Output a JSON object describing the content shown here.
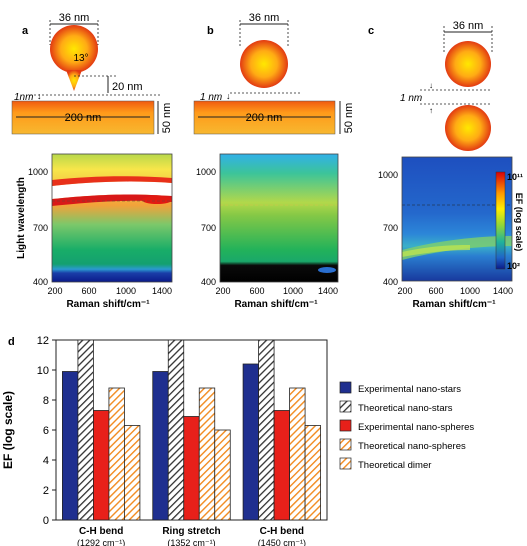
{
  "panels": {
    "a": {
      "label": "a",
      "dims": {
        "diameter": "36 nm",
        "angle": "13°",
        "tip": "20 nm",
        "gap": "1nm",
        "length": "200 nm",
        "thickness": "50 nm"
      },
      "ticks_y": [
        "1000",
        "700",
        "400"
      ],
      "ticks_x": [
        "200",
        "600",
        "1000",
        "1400"
      ],
      "ylabel": "Light wavelength",
      "xlabel": "Raman shift/cm⁻¹"
    },
    "b": {
      "label": "b",
      "dims": {
        "diameter": "36 nm",
        "gap": "1 nm",
        "length": "200 nm",
        "thickness": "50 nm"
      },
      "ticks_y": [
        "1000",
        "700",
        "400"
      ],
      "ticks_x": [
        "200",
        "600",
        "1000",
        "1400"
      ],
      "xlabel": "Raman shift/cm⁻¹"
    },
    "c": {
      "label": "c",
      "dims": {
        "diameter": "36 nm",
        "gap": "1 nm"
      },
      "ticks_y": [
        "1000",
        "700",
        "400"
      ],
      "ticks_x": [
        "200",
        "600",
        "1000",
        "1400"
      ],
      "xlabel": "Raman shift/cm⁻¹",
      "colorbar": {
        "top": "10¹¹",
        "bottom": "10²",
        "label": "EF (log scale)"
      }
    }
  },
  "bar_panel_label": "d",
  "chart_data": {
    "type": "bar",
    "categories": [
      "C-H bend (1292 cm⁻¹)",
      "Ring stretch (1352 cm⁻¹)",
      "C-H bend (1450 cm⁻¹)"
    ],
    "category_lines": [
      [
        "C-H bend",
        "(1292 cm⁻¹)"
      ],
      [
        "Ring stretch",
        "(1352 cm⁻¹)"
      ],
      [
        "C-H bend",
        "(1450 cm⁻¹)"
      ]
    ],
    "series": [
      {
        "name": "Experimental nano-stars",
        "values": [
          9.9,
          9.9,
          10.4
        ],
        "color": "#1f2f8f",
        "hatch": false
      },
      {
        "name": "Theoretical nano-stars",
        "values": [
          12,
          12,
          12
        ],
        "color": "#303030",
        "hatch": true
      },
      {
        "name": "Experimental nano-spheres",
        "values": [
          7.3,
          6.9,
          7.3
        ],
        "color": "#e8201a",
        "hatch": false
      },
      {
        "name": "Theoretical nano-spheres",
        "values": [
          8.8,
          8.8,
          8.8
        ],
        "color": "#f28a1e",
        "hatch": true
      },
      {
        "name": "Theoretical dimer",
        "values": [
          6.3,
          6.0,
          6.3
        ],
        "color": "#f29a2e",
        "hatch": true
      }
    ],
    "ylabel": "EF (log scale)",
    "ylim": [
      0,
      12
    ],
    "yticks": [
      0,
      2,
      4,
      6,
      8,
      10,
      12
    ],
    "legend_position": "right"
  }
}
